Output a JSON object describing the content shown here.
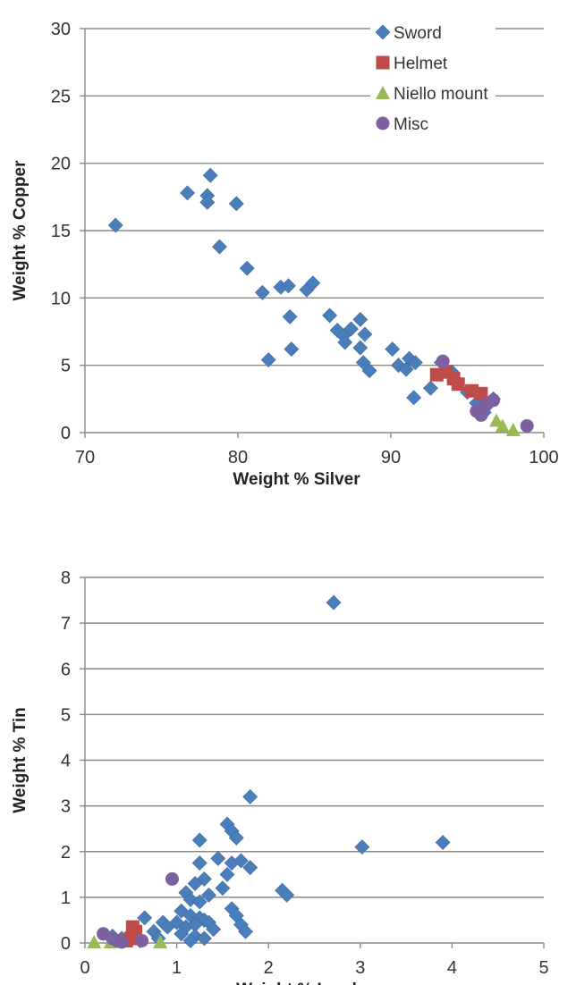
{
  "colors": {
    "Sword": "#4a7ebb",
    "Helmet": "#be4b48",
    "Niello mount": "#98b954",
    "Misc": "#7d60a0"
  },
  "chart_data": [
    {
      "type": "scatter",
      "xlabel": "Weight % Silver",
      "ylabel": "Weight % Copper",
      "xlim": [
        70,
        100
      ],
      "ylim": [
        0,
        30
      ],
      "xticks": [
        70,
        80,
        90,
        100
      ],
      "yticks": [
        0,
        5,
        10,
        15,
        20,
        25,
        30
      ],
      "grid": "horizontal",
      "legend": "top-right",
      "series": [
        {
          "name": "Sword",
          "marker": "diamond",
          "points": [
            [
              72.0,
              15.4
            ],
            [
              76.7,
              17.8
            ],
            [
              78.0,
              17.6
            ],
            [
              78.2,
              19.1
            ],
            [
              78.0,
              17.1
            ],
            [
              79.9,
              17.0
            ],
            [
              78.8,
              13.8
            ],
            [
              80.6,
              12.2
            ],
            [
              81.6,
              10.4
            ],
            [
              82.8,
              10.8
            ],
            [
              83.3,
              10.9
            ],
            [
              83.4,
              8.6
            ],
            [
              84.5,
              10.6
            ],
            [
              84.9,
              11.1
            ],
            [
              82.0,
              5.4
            ],
            [
              83.5,
              6.2
            ],
            [
              86.0,
              8.7
            ],
            [
              86.5,
              7.6
            ],
            [
              86.9,
              7.2
            ],
            [
              87.0,
              6.7
            ],
            [
              87.4,
              7.7
            ],
            [
              88.0,
              8.4
            ],
            [
              88.3,
              7.3
            ],
            [
              88.0,
              6.3
            ],
            [
              88.2,
              5.2
            ],
            [
              88.6,
              4.6
            ],
            [
              90.1,
              6.2
            ],
            [
              90.5,
              5.0
            ],
            [
              91.0,
              4.7
            ],
            [
              91.2,
              5.5
            ],
            [
              91.6,
              5.2
            ],
            [
              91.5,
              2.6
            ],
            [
              92.6,
              3.3
            ],
            [
              93.3,
              5.2
            ],
            [
              94.0,
              4.5
            ],
            [
              95.0,
              3.0
            ],
            [
              95.6,
              2.2
            ],
            [
              96.2,
              1.9
            ],
            [
              96.7,
              2.5
            ],
            [
              96.1,
              1.5
            ]
          ]
        },
        {
          "name": "Helmet",
          "marker": "square",
          "points": [
            [
              93.0,
              4.3
            ],
            [
              93.6,
              4.5
            ],
            [
              94.1,
              4.0
            ],
            [
              94.4,
              3.6
            ],
            [
              95.3,
              3.1
            ],
            [
              95.9,
              2.9
            ]
          ]
        },
        {
          "name": "Niello mount",
          "marker": "triangle",
          "points": [
            [
              96.9,
              0.9
            ],
            [
              97.3,
              0.5
            ],
            [
              98.0,
              0.2
            ]
          ]
        },
        {
          "name": "Misc",
          "marker": "circle",
          "points": [
            [
              93.4,
              5.3
            ],
            [
              95.6,
              1.6
            ],
            [
              96.2,
              2.1
            ],
            [
              96.7,
              2.4
            ],
            [
              95.9,
              1.3
            ],
            [
              98.9,
              0.5
            ]
          ]
        }
      ]
    },
    {
      "type": "scatter",
      "xlabel": "Weight % Lead",
      "ylabel": "Weight % Tin",
      "xlim": [
        0,
        5
      ],
      "ylim": [
        0,
        8
      ],
      "xticks": [
        0,
        1,
        2,
        3,
        4,
        5
      ],
      "yticks": [
        0,
        1,
        2,
        3,
        4,
        5,
        6,
        7,
        8
      ],
      "grid": "horizontal",
      "series": [
        {
          "name": "Sword",
          "marker": "diamond",
          "points": [
            [
              2.71,
              7.45
            ],
            [
              1.8,
              3.2
            ],
            [
              1.55,
              2.6
            ],
            [
              1.6,
              2.45
            ],
            [
              1.65,
              2.3
            ],
            [
              1.25,
              2.25
            ],
            [
              3.02,
              2.1
            ],
            [
              3.9,
              2.2
            ],
            [
              1.45,
              1.85
            ],
            [
              1.6,
              1.75
            ],
            [
              1.7,
              1.8
            ],
            [
              1.8,
              1.65
            ],
            [
              1.25,
              1.75
            ],
            [
              1.55,
              1.5
            ],
            [
              1.3,
              1.4
            ],
            [
              1.5,
              1.2
            ],
            [
              1.2,
              1.3
            ],
            [
              1.1,
              1.1
            ],
            [
              1.35,
              1.05
            ],
            [
              2.15,
              1.15
            ],
            [
              2.2,
              1.05
            ],
            [
              1.15,
              0.95
            ],
            [
              1.25,
              0.9
            ],
            [
              1.6,
              0.75
            ],
            [
              1.65,
              0.6
            ],
            [
              1.05,
              0.7
            ],
            [
              1.15,
              0.6
            ],
            [
              1.25,
              0.55
            ],
            [
              1.3,
              0.5
            ],
            [
              1.35,
              0.45
            ],
            [
              1.0,
              0.45
            ],
            [
              1.1,
              0.35
            ],
            [
              1.2,
              0.4
            ],
            [
              1.4,
              0.3
            ],
            [
              1.7,
              0.4
            ],
            [
              1.75,
              0.25
            ],
            [
              1.2,
              0.15
            ],
            [
              1.3,
              0.1
            ],
            [
              1.15,
              0.05
            ],
            [
              1.05,
              0.2
            ],
            [
              0.65,
              0.55
            ],
            [
              0.75,
              0.25
            ],
            [
              0.85,
              0.45
            ],
            [
              0.9,
              0.35
            ],
            [
              0.8,
              0.1
            ],
            [
              0.6,
              0.05
            ],
            [
              0.4,
              0.1
            ],
            [
              0.3,
              0.15
            ]
          ]
        },
        {
          "name": "Helmet",
          "marker": "square",
          "points": [
            [
              0.5,
              0.1
            ],
            [
              0.55,
              0.25
            ],
            [
              0.52,
              0.35
            ],
            [
              0.45,
              0.05
            ]
          ]
        },
        {
          "name": "Niello mount",
          "marker": "triangle",
          "points": [
            [
              0.1,
              0.02
            ],
            [
              0.28,
              0.02
            ],
            [
              0.82,
              0.02
            ]
          ]
        },
        {
          "name": "Misc",
          "marker": "circle",
          "points": [
            [
              0.95,
              1.4
            ],
            [
              0.2,
              0.2
            ],
            [
              0.3,
              0.1
            ],
            [
              0.35,
              0.05
            ],
            [
              0.4,
              0.02
            ],
            [
              0.62,
              0.05
            ]
          ]
        }
      ]
    }
  ]
}
